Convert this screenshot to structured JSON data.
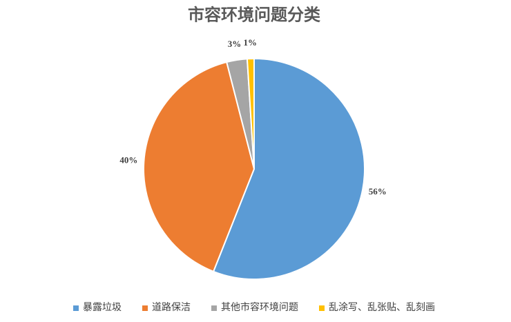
{
  "chart_data": {
    "type": "pie",
    "title": "市容环境问题分类",
    "categories": [
      "暴露垃圾",
      "道路保洁",
      "其他市容环境问题",
      "乱涂写、乱张贴、乱刻画"
    ],
    "values": [
      56,
      40,
      3,
      1
    ],
    "value_labels": [
      "56%",
      "40%",
      "3%",
      "1%"
    ],
    "colors": [
      "#5b9bd5",
      "#ed7d31",
      "#a5a5a5",
      "#ffc000"
    ],
    "legend": "bottom"
  }
}
